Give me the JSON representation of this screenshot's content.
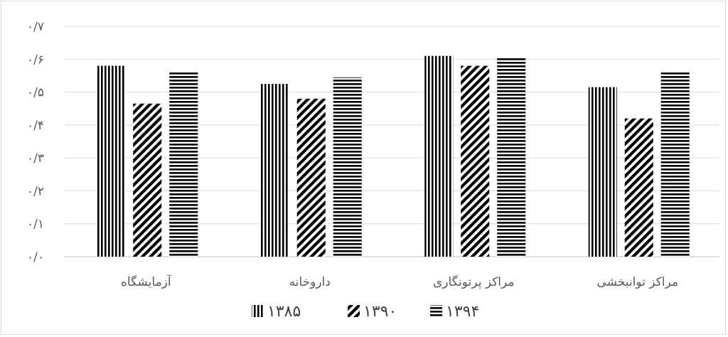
{
  "chart_data": {
    "type": "bar",
    "title": "",
    "xlabel": "",
    "ylabel": "",
    "ylim": [
      0,
      0.7
    ],
    "y_ticks": [
      0,
      0.1,
      0.2,
      0.3,
      0.4,
      0.5,
      0.6,
      0.7
    ],
    "y_tick_labels": [
      "۰/۰",
      "۰/۱",
      "۰/۲",
      "۰/۳",
      "۰/۴",
      "۰/۵",
      "۰/۶",
      "۰/۷"
    ],
    "categories": [
      "آزمایشگاه",
      "داروخانه",
      "مراکز پرتونگاری",
      "مراکز توانبخشی"
    ],
    "series": [
      {
        "name": "۱۳۸۵",
        "pattern": "vertical-lines",
        "values": [
          0.58,
          0.525,
          0.61,
          0.515
        ]
      },
      {
        "name": "۱۳۹۰",
        "pattern": "diagonal-lines",
        "values": [
          0.465,
          0.48,
          0.58,
          0.42
        ]
      },
      {
        "name": "۱۳۹۴",
        "pattern": "horizontal-lines",
        "values": [
          0.56,
          0.545,
          0.605,
          0.56
        ]
      }
    ],
    "grid": true,
    "legend_position": "bottom",
    "colors": {
      "bars": "#000000",
      "grid": "#d9d9d9",
      "text": "#595959"
    }
  }
}
